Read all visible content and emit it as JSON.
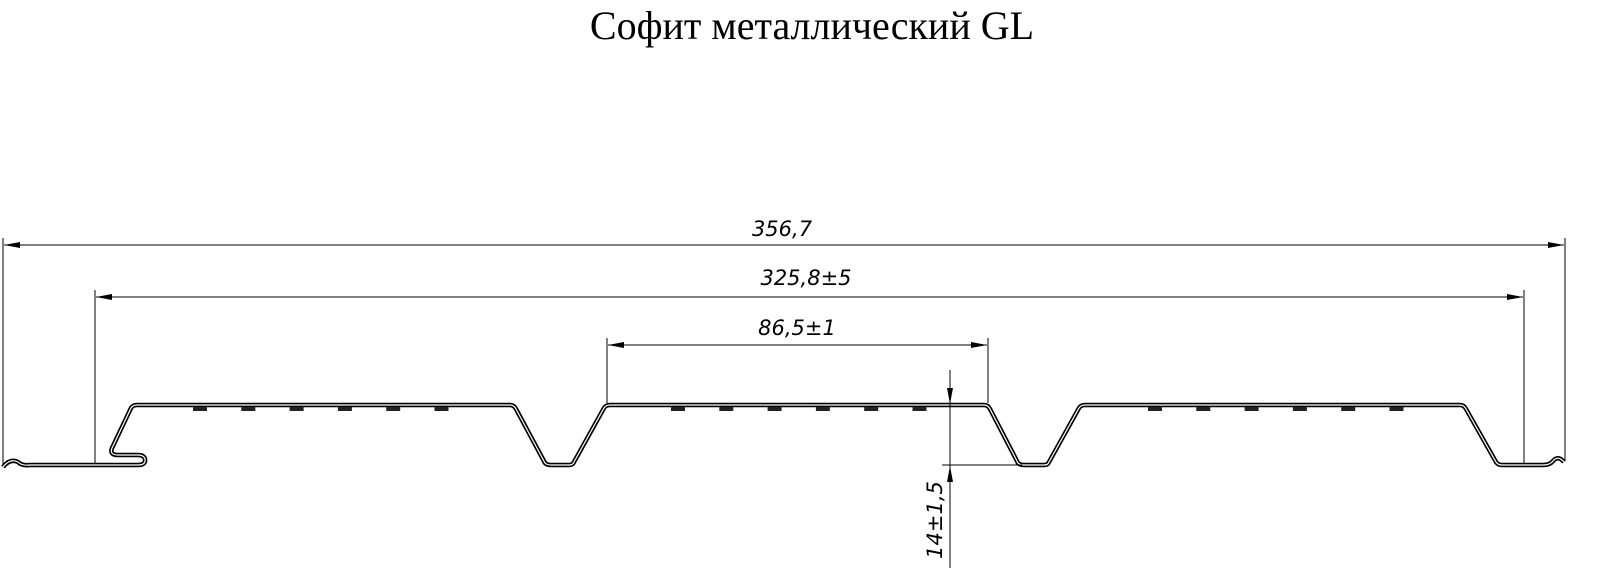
{
  "title": "Софит металлический GL",
  "dimensions": {
    "overall_width": "356,7",
    "working_width": "325,8±5",
    "rib_pitch": "86,5±1",
    "profile_height": "14±1,5"
  },
  "colors": {
    "line": "#000000",
    "background": "#ffffff"
  }
}
